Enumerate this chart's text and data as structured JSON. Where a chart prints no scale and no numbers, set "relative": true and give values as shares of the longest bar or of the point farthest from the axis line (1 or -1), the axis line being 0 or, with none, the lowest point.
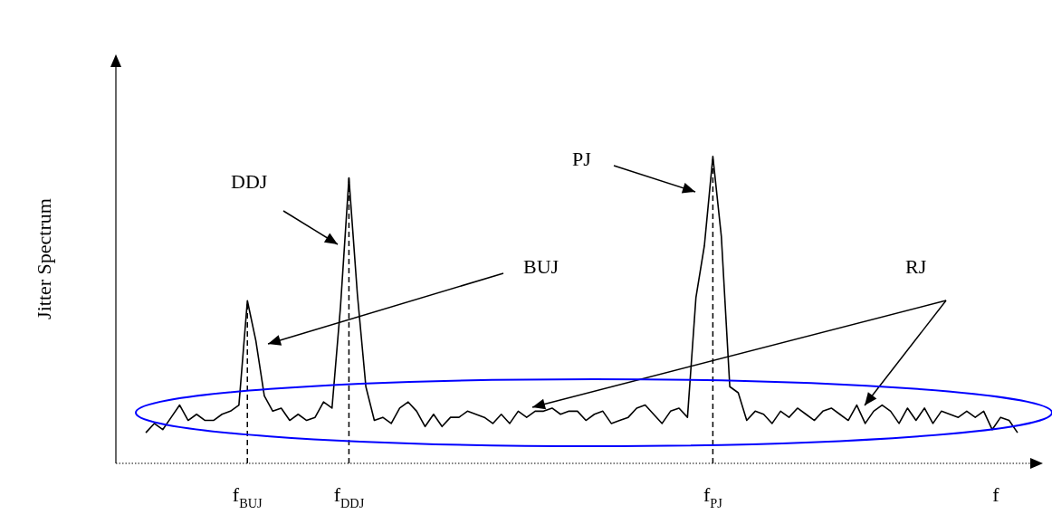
{
  "chart_data": {
    "type": "line",
    "relative": true,
    "marker": "none",
    "line_style": "solid",
    "color": "#000000",
    "xlabel": "f",
    "ylabel": "Jitter Spectrum",
    "categories": [
      null,
      null,
      null,
      null,
      null,
      null,
      null,
      null,
      null,
      null,
      null,
      null,
      "f$_{BUJ}$",
      null,
      null,
      null,
      null,
      null,
      null,
      null,
      null,
      null,
      null,
      null,
      "f$_{DDJ}$",
      null,
      null,
      null,
      null,
      null,
      null,
      null,
      null,
      null,
      null,
      null,
      null,
      null,
      null,
      null,
      null,
      null,
      null,
      null,
      null,
      null,
      null,
      null,
      null,
      null,
      null,
      null,
      null,
      null,
      null,
      null,
      null,
      null,
      null,
      null,
      null,
      null,
      null,
      null,
      null,
      null,
      null,
      "f$_{PJ}$",
      null,
      null,
      null,
      null,
      null,
      null,
      null,
      null,
      null,
      null,
      null,
      null,
      null,
      null,
      null,
      null,
      null,
      null,
      null,
      null,
      null,
      null,
      null,
      null,
      null,
      null,
      null,
      null,
      null,
      null,
      null,
      null,
      null,
      null,
      null,
      null
    ],
    "values": [
      0.1,
      0.13,
      0.11,
      0.15,
      0.19,
      0.14,
      0.16,
      0.14,
      0.14,
      0.16,
      0.17,
      0.19,
      0.53,
      0.4,
      0.22,
      0.17,
      0.18,
      0.14,
      0.16,
      0.14,
      0.15,
      0.2,
      0.18,
      0.51,
      0.93,
      0.55,
      0.25,
      0.14,
      0.15,
      0.13,
      0.18,
      0.2,
      0.17,
      0.12,
      0.16,
      0.12,
      0.15,
      0.15,
      0.17,
      0.16,
      0.15,
      0.13,
      0.16,
      0.13,
      0.17,
      0.15,
      0.17,
      0.17,
      0.18,
      0.16,
      0.17,
      0.17,
      0.14,
      0.16,
      0.17,
      0.13,
      0.14,
      0.15,
      0.18,
      0.19,
      0.16,
      0.13,
      0.17,
      0.18,
      0.15,
      0.54,
      0.71,
      1,
      0.74,
      0.25,
      0.23,
      0.14,
      0.17,
      0.16,
      0.13,
      0.17,
      0.15,
      0.18,
      0.16,
      0.14,
      0.17,
      0.18,
      0.16,
      0.14,
      0.19,
      0.13,
      0.17,
      0.19,
      0.17,
      0.13,
      0.18,
      0.14,
      0.18,
      0.13,
      0.17,
      0.16,
      0.15,
      0.17,
      0.15,
      0.17,
      0.11,
      0.15,
      0.14,
      0.1
    ],
    "ref_lines": [
      {
        "axis": "x",
        "value": "f$_{BUJ}$",
        "line_style": "dashed"
      },
      {
        "axis": "x",
        "value": "f$_{DDJ}$",
        "line_style": "dashed"
      },
      {
        "axis": "x",
        "value": "f$_{PJ}$",
        "line_style": "dashed"
      }
    ],
    "annotations": [
      "DDJ",
      "BUJ",
      "PJ",
      "RJ"
    ]
  }
}
